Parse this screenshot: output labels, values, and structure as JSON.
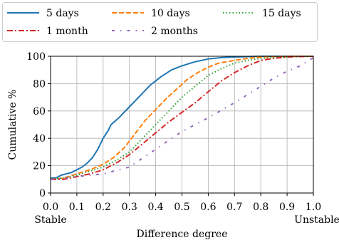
{
  "chart_data": {
    "type": "line",
    "xlabel": "Difference degree",
    "ylabel": "Cumulative %",
    "xlim": [
      0,
      1
    ],
    "ylim": [
      0,
      100
    ],
    "grid": true,
    "legend_position": "top",
    "x_ticks": [
      0.0,
      0.1,
      0.2,
      0.3,
      0.4,
      0.5,
      0.6,
      0.7,
      0.8,
      0.9,
      1.0
    ],
    "x_tick_labels": [
      "0.0",
      "0.1",
      "0.2",
      "0.3",
      "0.4",
      "0.5",
      "0.6",
      "0.7",
      "0.8",
      "0.9",
      "1.0"
    ],
    "y_ticks": [
      0,
      20,
      40,
      60,
      80,
      100
    ],
    "y_tick_labels": [
      "0",
      "20",
      "40",
      "60",
      "80",
      "100"
    ],
    "x_end_labels": {
      "left": "Stable",
      "right": "Unstable"
    },
    "series": [
      {
        "name": "5 days",
        "color": "#1f77b4",
        "dash": "solid",
        "points": [
          [
            0,
            11
          ],
          [
            0.02,
            11
          ],
          [
            0.04,
            13
          ],
          [
            0.06,
            14
          ],
          [
            0.08,
            15
          ],
          [
            0.1,
            17
          ],
          [
            0.12,
            19
          ],
          [
            0.14,
            22
          ],
          [
            0.16,
            26
          ],
          [
            0.18,
            32
          ],
          [
            0.2,
            40
          ],
          [
            0.22,
            46
          ],
          [
            0.23,
            50
          ],
          [
            0.26,
            55
          ],
          [
            0.3,
            63
          ],
          [
            0.34,
            71
          ],
          [
            0.38,
            79
          ],
          [
            0.42,
            85
          ],
          [
            0.46,
            90
          ],
          [
            0.5,
            93
          ],
          [
            0.55,
            96
          ],
          [
            0.6,
            98
          ],
          [
            0.65,
            99
          ],
          [
            0.7,
            99.5
          ],
          [
            0.8,
            100
          ],
          [
            1.0,
            100
          ]
        ]
      },
      {
        "name": "10 days",
        "color": "#ff7f0e",
        "dash": "dashed",
        "points": [
          [
            0,
            10
          ],
          [
            0.05,
            11
          ],
          [
            0.1,
            14
          ],
          [
            0.15,
            17
          ],
          [
            0.2,
            21
          ],
          [
            0.24,
            26
          ],
          [
            0.28,
            33
          ],
          [
            0.32,
            43
          ],
          [
            0.36,
            53
          ],
          [
            0.4,
            61
          ],
          [
            0.44,
            69
          ],
          [
            0.48,
            76
          ],
          [
            0.52,
            83
          ],
          [
            0.56,
            88
          ],
          [
            0.6,
            92
          ],
          [
            0.64,
            95
          ],
          [
            0.7,
            97
          ],
          [
            0.75,
            98.5
          ],
          [
            0.8,
            99.5
          ],
          [
            0.9,
            100
          ],
          [
            1.0,
            100
          ]
        ]
      },
      {
        "name": "15 days",
        "color": "#2ca02c",
        "dash": "dotted",
        "points": [
          [
            0,
            10
          ],
          [
            0.05,
            11
          ],
          [
            0.1,
            13
          ],
          [
            0.15,
            16
          ],
          [
            0.2,
            19
          ],
          [
            0.25,
            24
          ],
          [
            0.3,
            30
          ],
          [
            0.34,
            38
          ],
          [
            0.38,
            46
          ],
          [
            0.42,
            54
          ],
          [
            0.46,
            62
          ],
          [
            0.5,
            70
          ],
          [
            0.55,
            78
          ],
          [
            0.6,
            86
          ],
          [
            0.65,
            91
          ],
          [
            0.7,
            95
          ],
          [
            0.75,
            97
          ],
          [
            0.8,
            98.5
          ],
          [
            0.9,
            99.5
          ],
          [
            1.0,
            100
          ]
        ]
      },
      {
        "name": "1 month",
        "color": "#d62728",
        "dash": "dashdot",
        "points": [
          [
            0,
            10
          ],
          [
            0.05,
            10
          ],
          [
            0.1,
            12
          ],
          [
            0.15,
            14
          ],
          [
            0.2,
            17
          ],
          [
            0.25,
            22
          ],
          [
            0.3,
            28
          ],
          [
            0.35,
            36
          ],
          [
            0.4,
            44
          ],
          [
            0.45,
            52
          ],
          [
            0.5,
            59
          ],
          [
            0.55,
            66
          ],
          [
            0.6,
            74
          ],
          [
            0.65,
            82
          ],
          [
            0.7,
            88
          ],
          [
            0.75,
            93
          ],
          [
            0.8,
            97
          ],
          [
            0.85,
            98.5
          ],
          [
            0.9,
            99.5
          ],
          [
            1.0,
            100
          ]
        ]
      },
      {
        "name": "2 months",
        "color": "#9467bd",
        "dash": "sparse-dashdot",
        "points": [
          [
            0,
            10
          ],
          [
            0.1,
            12
          ],
          [
            0.2,
            14
          ],
          [
            0.3,
            19
          ],
          [
            0.4,
            32
          ],
          [
            0.5,
            45
          ],
          [
            0.6,
            55
          ],
          [
            0.7,
            66
          ],
          [
            0.8,
            78
          ],
          [
            0.85,
            84
          ],
          [
            0.9,
            89
          ],
          [
            0.95,
            93
          ],
          [
            1.0,
            99
          ]
        ]
      }
    ]
  }
}
